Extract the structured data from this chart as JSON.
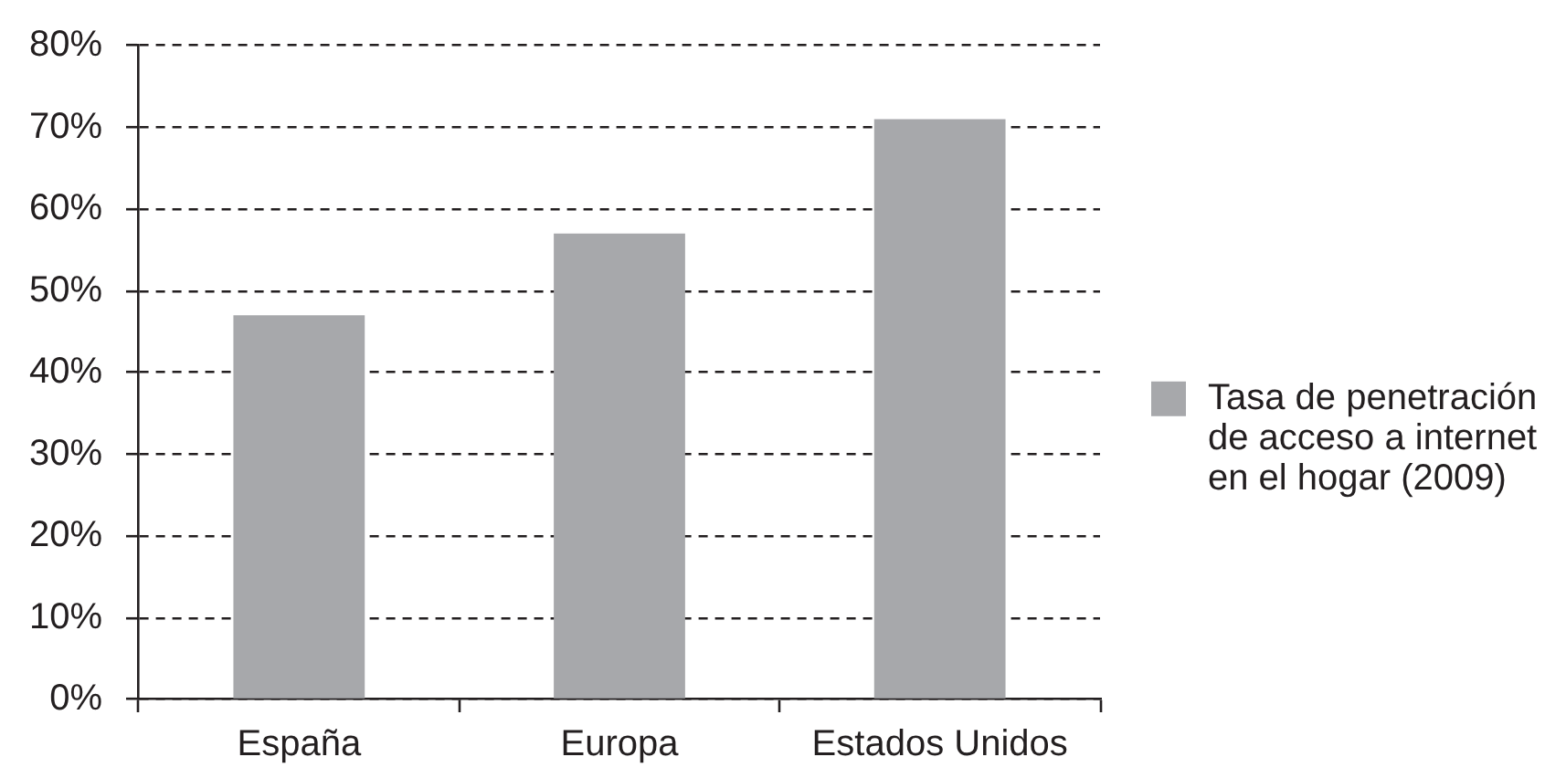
{
  "chart_data": {
    "type": "bar",
    "categories": [
      "España",
      "Europa",
      "Estados Unidos"
    ],
    "series": [
      {
        "name": "Tasa de penetración de acceso a internet en el hogar (2009)",
        "color": "#a7a8ab",
        "values": [
          47,
          57,
          71
        ]
      }
    ],
    "ylim": [
      0,
      80
    ],
    "yticks": [
      {
        "value": 0,
        "label": "0%"
      },
      {
        "value": 10,
        "label": "10%"
      },
      {
        "value": 20,
        "label": "20%"
      },
      {
        "value": 30,
        "label": "30%"
      },
      {
        "value": 40,
        "label": "40%"
      },
      {
        "value": 50,
        "label": "50%"
      },
      {
        "value": 60,
        "label": "60%"
      },
      {
        "value": 70,
        "label": "70%"
      },
      {
        "value": 80,
        "label": "80%"
      }
    ],
    "grid": "y",
    "legend": "right"
  }
}
